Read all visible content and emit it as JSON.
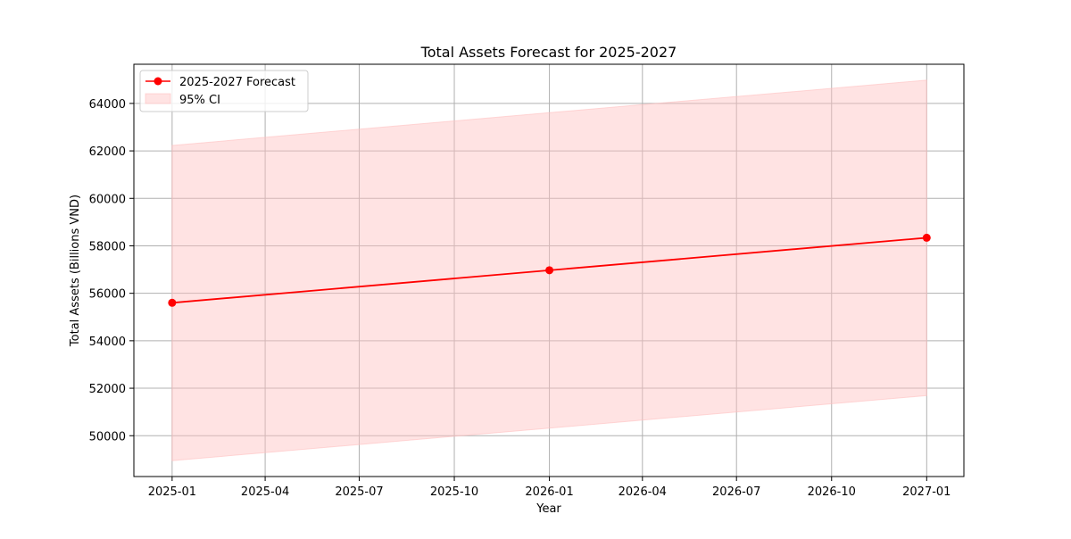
{
  "chart_data": {
    "type": "line",
    "title": "Total Assets Forecast for 2025-2027",
    "xlabel": "Year",
    "ylabel": "Total Assets (Billions VND)",
    "x": [
      "2025-01-01",
      "2026-01-01",
      "2027-01-01"
    ],
    "series": [
      {
        "name": "2025-2027 Forecast",
        "values": [
          55600,
          56970,
          58340
        ],
        "color": "#ff0000",
        "marker": "circle"
      }
    ],
    "confidence_interval": {
      "name": "95% CI",
      "lower": [
        48950,
        50320,
        51690
      ],
      "upper": [
        62230,
        63610,
        64980
      ],
      "color": "#ffc0c0"
    },
    "xticks": [
      "2025-01",
      "2025-04",
      "2025-07",
      "2025-10",
      "2026-01",
      "2026-04",
      "2026-07",
      "2026-10",
      "2027-01"
    ],
    "yticks": [
      50000,
      52000,
      54000,
      56000,
      58000,
      60000,
      62000,
      64000
    ],
    "xlim": [
      "2024-11-25",
      "2027-02-06"
    ],
    "ylim": [
      48280,
      65650
    ],
    "grid": true,
    "legend_position": "top-left"
  }
}
